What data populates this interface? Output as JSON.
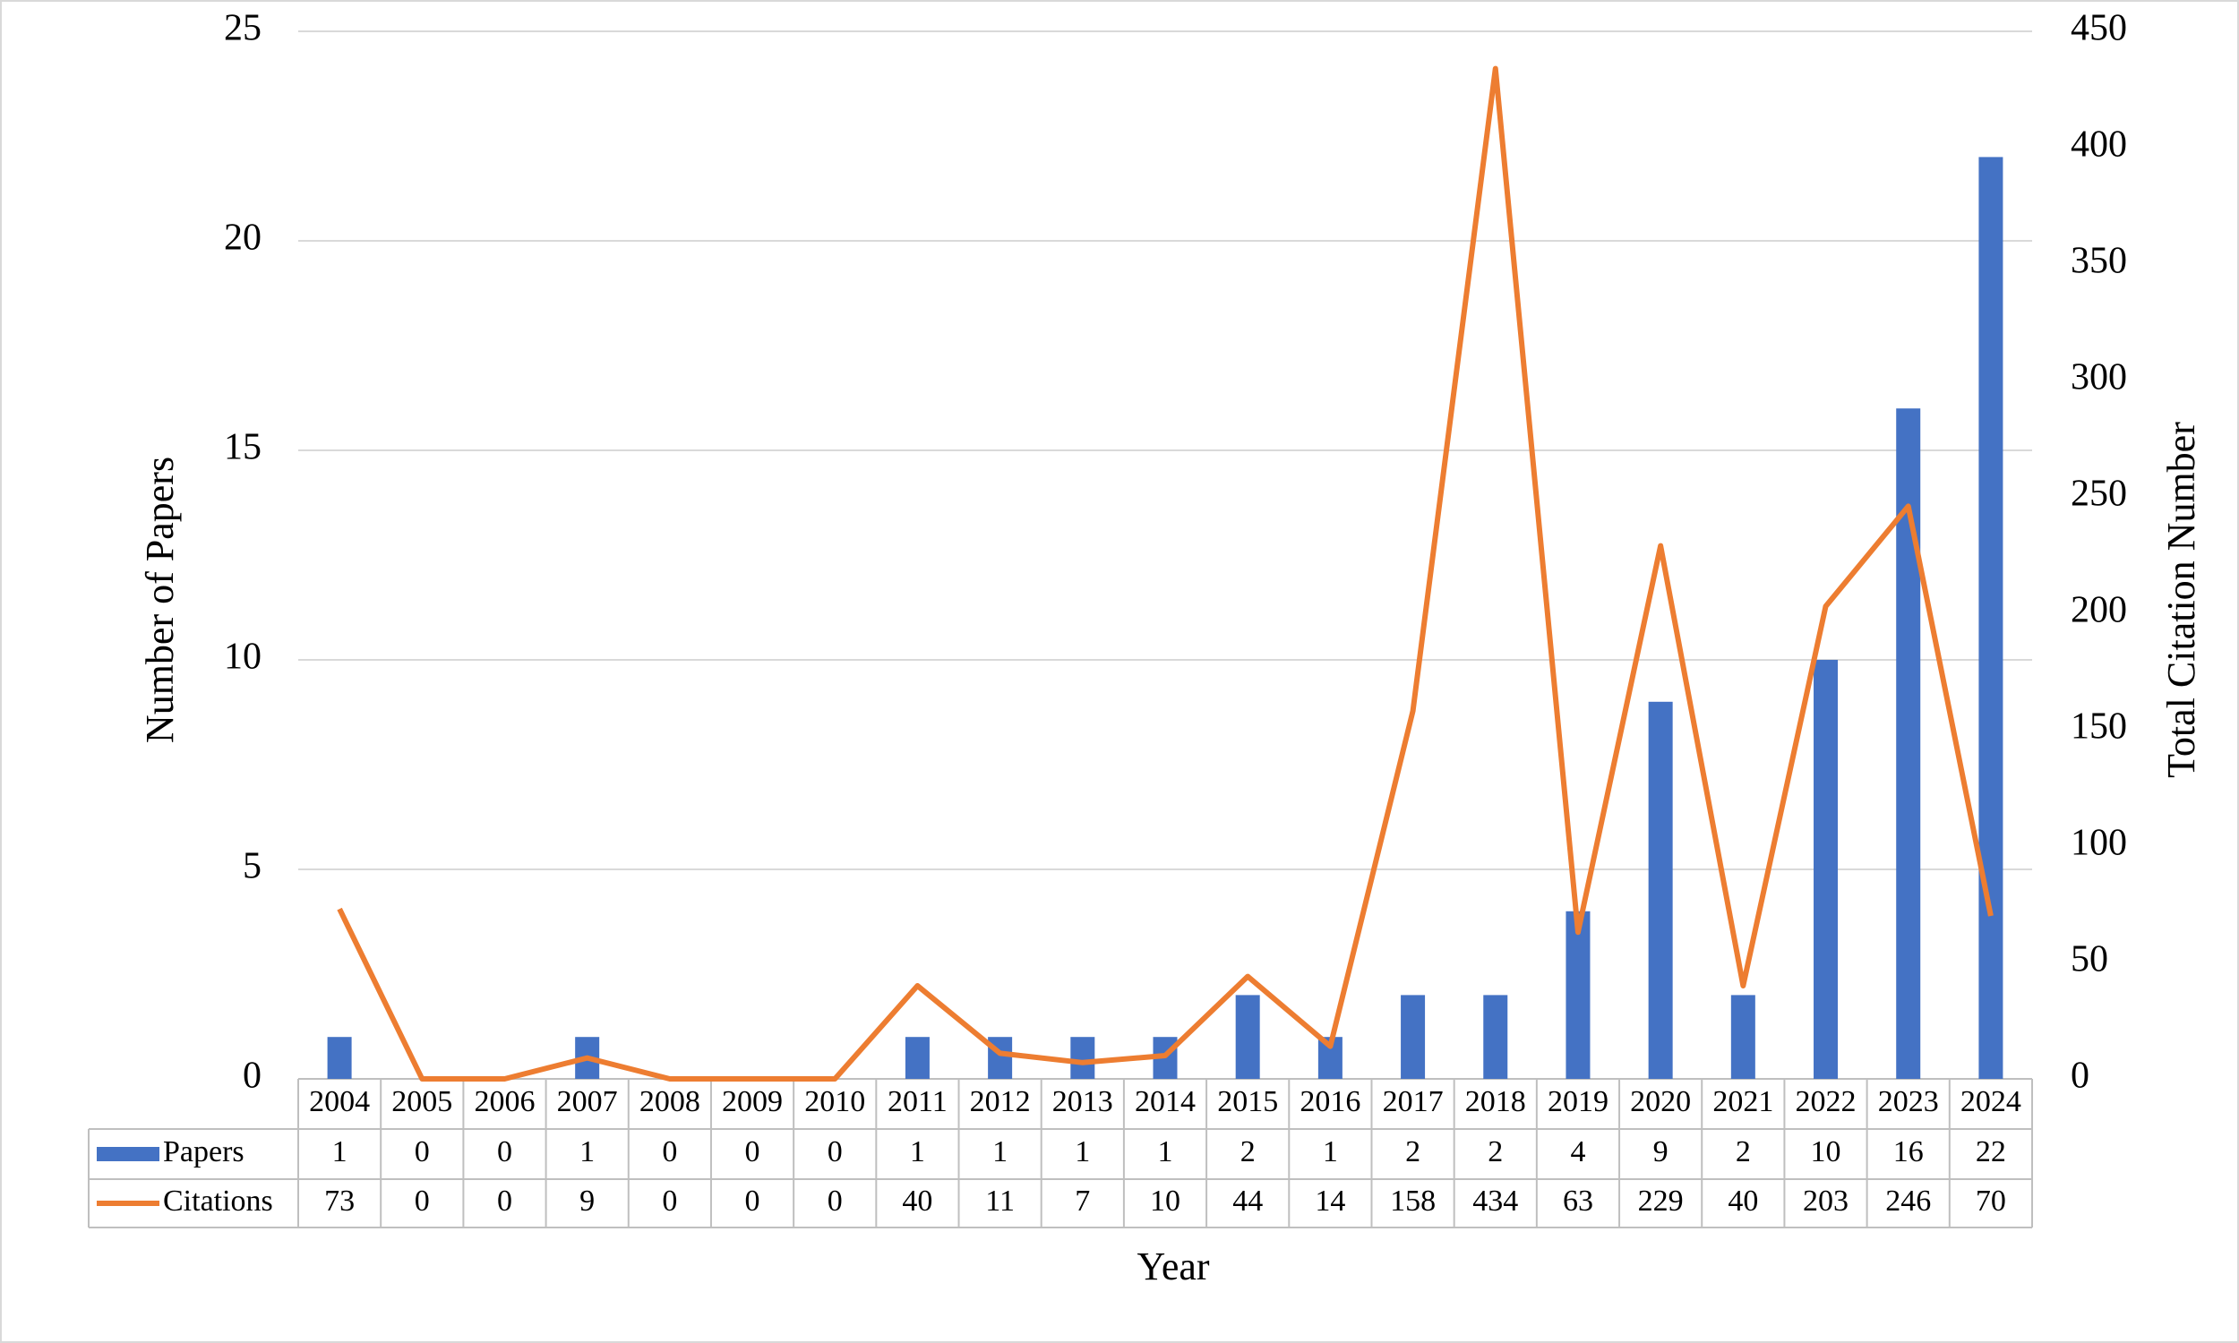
{
  "chart_data": {
    "type": "bar-line",
    "x_label": "Year",
    "y_label": "Number of Papers",
    "y2_label": "Total Citation Number",
    "categories": [
      "2004",
      "2005",
      "2006",
      "2007",
      "2008",
      "2009",
      "2010",
      "2011",
      "2012",
      "2013",
      "2014",
      "2015",
      "2016",
      "2017",
      "2018",
      "2019",
      "2020",
      "2021",
      "2022",
      "2023",
      "2024"
    ],
    "series": [
      {
        "name": "Papers",
        "type": "bar",
        "color": "#4472c4",
        "values": [
          1,
          0,
          0,
          1,
          0,
          0,
          0,
          1,
          1,
          1,
          1,
          2,
          1,
          2,
          2,
          4,
          9,
          2,
          10,
          16,
          22
        ]
      },
      {
        "name": "Citations",
        "type": "line",
        "axis": "y2",
        "color": "#ed7d31",
        "values": [
          73,
          0,
          0,
          9,
          0,
          0,
          0,
          40,
          11,
          7,
          10,
          44,
          14,
          158,
          434,
          63,
          229,
          40,
          203,
          246,
          70
        ]
      }
    ],
    "ylim": [
      0,
      25
    ],
    "yticks": [
      0,
      5,
      10,
      15,
      20,
      25
    ],
    "y2lim": [
      0,
      450
    ],
    "y2ticks": [
      0,
      50,
      100,
      150,
      200,
      250,
      300,
      350,
      400,
      450
    ],
    "grid": true,
    "data_table": true
  }
}
